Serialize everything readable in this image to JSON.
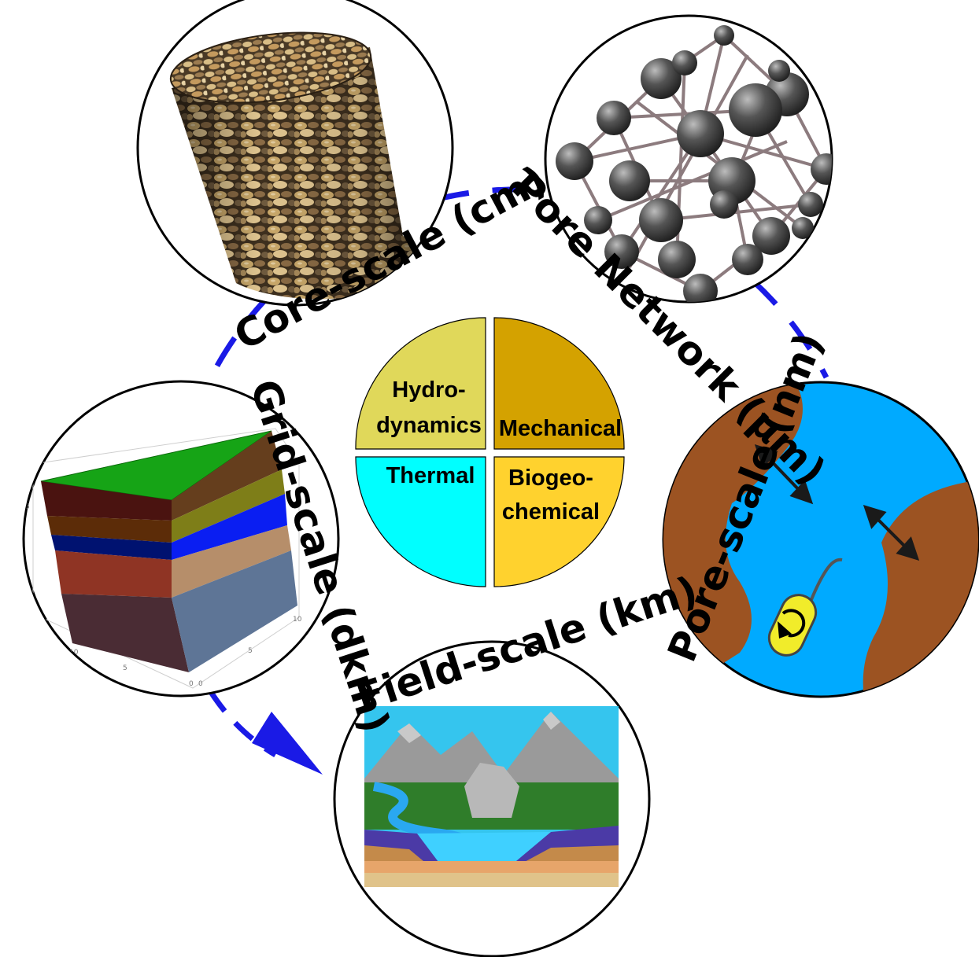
{
  "scales": {
    "core": "Core-scale (cm)",
    "pore_network": "Pore Network (µm)",
    "pore": "Pore-scale (nm)",
    "field": "Field-scale (km)",
    "grid": "Grid-scale (dkm)"
  },
  "processes": {
    "hydro_line1": "Hydro-",
    "hydro_line2": "dynamics",
    "mechanical": "Mechanical",
    "thermal": "Thermal",
    "bio_line1": "Biogeo-",
    "bio_line2": "chemical"
  },
  "grid_axis_ticks": {
    "y_upper": "5",
    "y_lower": "0",
    "x_1": "10",
    "x_2": "5",
    "x_3": "0",
    "z_1": "0",
    "z_2": "5",
    "z_3": "10"
  },
  "colors": {
    "cycle_arrow": "#1a1ae6",
    "hydro": "#e0d85a",
    "mechanical": "#d4a200",
    "thermal": "#00ffff",
    "biogeochemical": "#ffd22e",
    "pore_water": "#00aaff",
    "pore_grain": "#9c5322"
  }
}
